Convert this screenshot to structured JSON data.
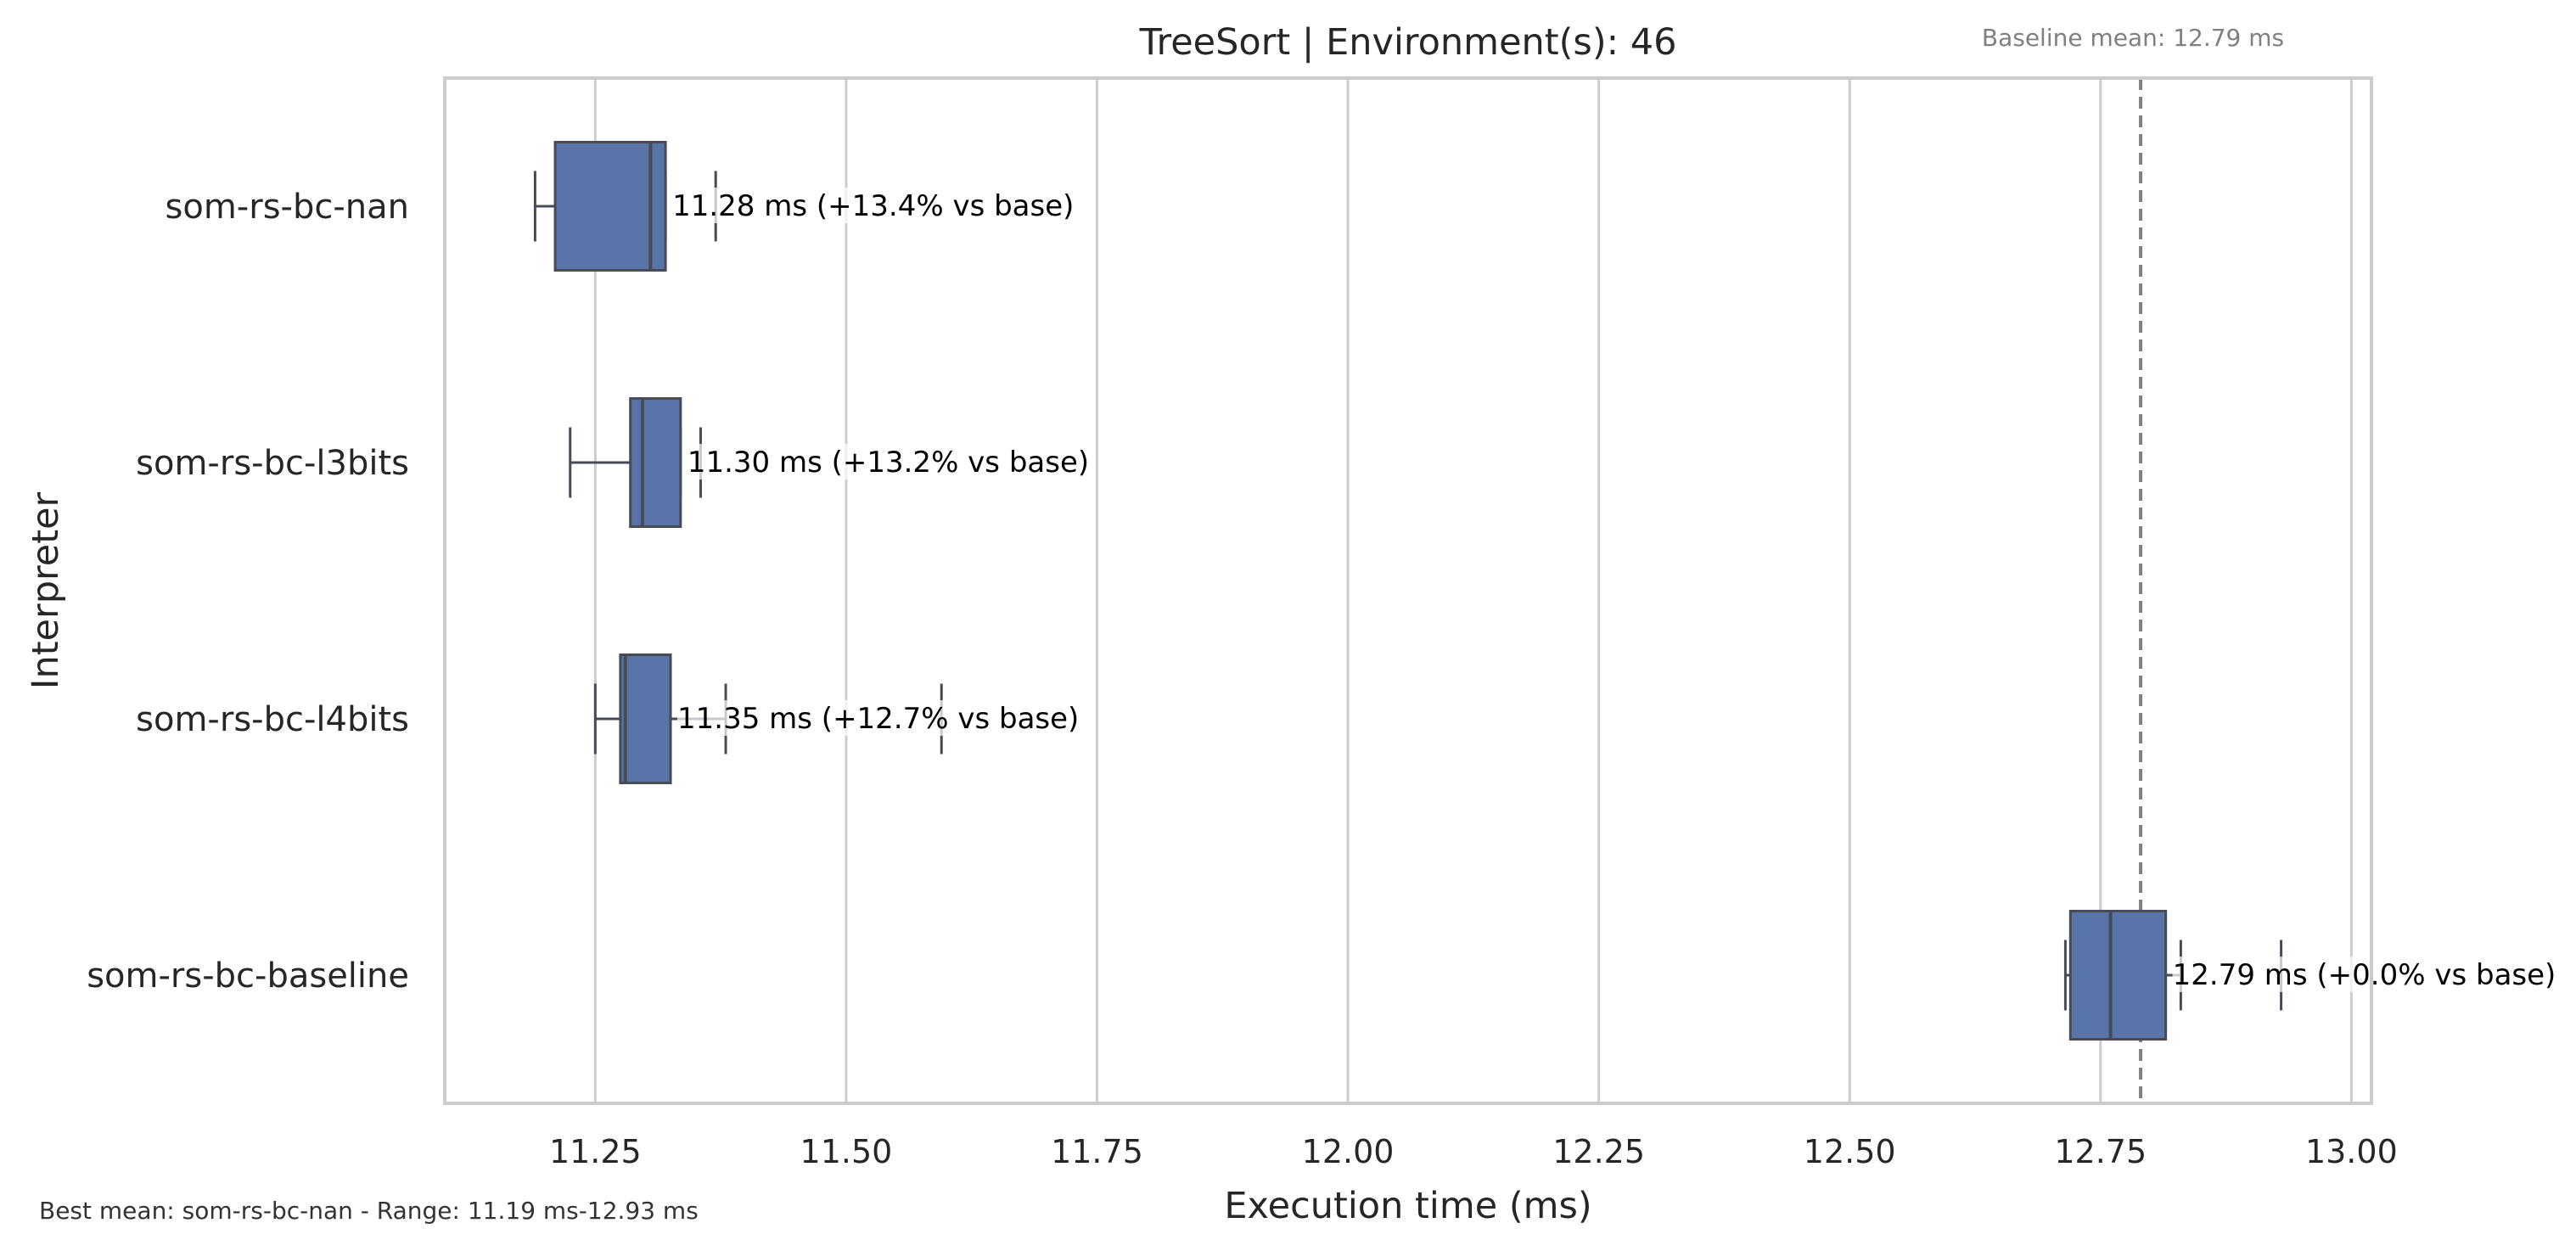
{
  "chart_data": {
    "type": "box",
    "title": "TreeSort | Environment(s): 46",
    "xlabel": "Execution time (ms)",
    "ylabel": "Interpreter",
    "xlim": [
      11.1,
      13.02
    ],
    "xticks": [
      11.25,
      11.5,
      11.75,
      12.0,
      12.25,
      12.5,
      12.75,
      13.0
    ],
    "xtick_labels": [
      "11.25",
      "11.50",
      "11.75",
      "12.00",
      "12.25",
      "12.50",
      "12.75",
      "13.00"
    ],
    "grid": "vertical",
    "colors": {
      "box": "#5874a8",
      "box_edge": "#474b55",
      "grid": "#cccccc",
      "frame": "#cccccc",
      "baseline_line": "#808080"
    },
    "baseline": {
      "value": 12.79,
      "label": "Baseline mean: 12.79 ms"
    },
    "footnote": "Best mean: som-rs-bc-nan - Range: 11.19 ms-12.93 ms",
    "series": [
      {
        "name": "som-rs-bc-nan",
        "whisker_low": 11.19,
        "q1": 11.21,
        "median": 11.305,
        "q3": 11.32,
        "whisker_high": 11.32,
        "outliers": [
          11.37
        ],
        "mean_label": "11.28 ms  (+13.4% vs base)"
      },
      {
        "name": "som-rs-bc-l3bits",
        "whisker_low": 11.225,
        "q1": 11.285,
        "median": 11.297,
        "q3": 11.335,
        "whisker_high": 11.335,
        "outliers": [
          11.355
        ],
        "mean_label": "11.30 ms  (+13.2% vs base)"
      },
      {
        "name": "som-rs-bc-l4bits",
        "whisker_low": 11.25,
        "q1": 11.275,
        "median": 11.28,
        "q3": 11.325,
        "whisker_high": 11.38,
        "outliers": [
          11.595
        ],
        "mean_label": "11.35 ms  (+12.7% vs base)"
      },
      {
        "name": "som-rs-bc-baseline",
        "whisker_low": 12.715,
        "q1": 12.72,
        "median": 12.76,
        "q3": 12.815,
        "whisker_high": 12.83,
        "outliers": [
          12.93
        ],
        "mean_label": "12.79 ms  (+0.0% vs base)"
      }
    ]
  }
}
